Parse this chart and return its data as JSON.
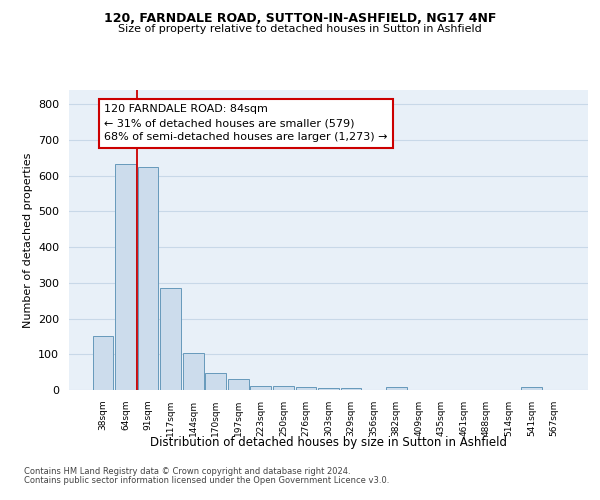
{
  "title1": "120, FARNDALE ROAD, SUTTON-IN-ASHFIELD, NG17 4NF",
  "title2": "Size of property relative to detached houses in Sutton in Ashfield",
  "xlabel": "Distribution of detached houses by size in Sutton in Ashfield",
  "ylabel": "Number of detached properties",
  "categories": [
    "38sqm",
    "64sqm",
    "91sqm",
    "117sqm",
    "144sqm",
    "170sqm",
    "197sqm",
    "223sqm",
    "250sqm",
    "276sqm",
    "303sqm",
    "329sqm",
    "356sqm",
    "382sqm",
    "409sqm",
    "435sqm",
    "461sqm",
    "488sqm",
    "514sqm",
    "541sqm",
    "567sqm"
  ],
  "values": [
    150,
    632,
    625,
    287,
    103,
    47,
    30,
    12,
    12,
    8,
    5,
    6,
    0,
    8,
    0,
    0,
    0,
    0,
    0,
    8,
    0
  ],
  "bar_color": "#ccdcec",
  "bar_edge_color": "#6699bb",
  "grid_color": "#c8d8e8",
  "background_color": "#e8f0f8",
  "annotation_line1": "120 FARNDALE ROAD: 84sqm",
  "annotation_line2": "← 31% of detached houses are smaller (579)",
  "annotation_line3": "68% of semi-detached houses are larger (1,273) →",
  "annotation_box_color": "#ffffff",
  "annotation_box_edge": "#cc0000",
  "vline_color": "#cc0000",
  "vline_index": 1.5,
  "ylim_max": 840,
  "yticks": [
    0,
    100,
    200,
    300,
    400,
    500,
    600,
    700,
    800
  ],
  "footnote1": "Contains HM Land Registry data © Crown copyright and database right 2024.",
  "footnote2": "Contains public sector information licensed under the Open Government Licence v3.0."
}
